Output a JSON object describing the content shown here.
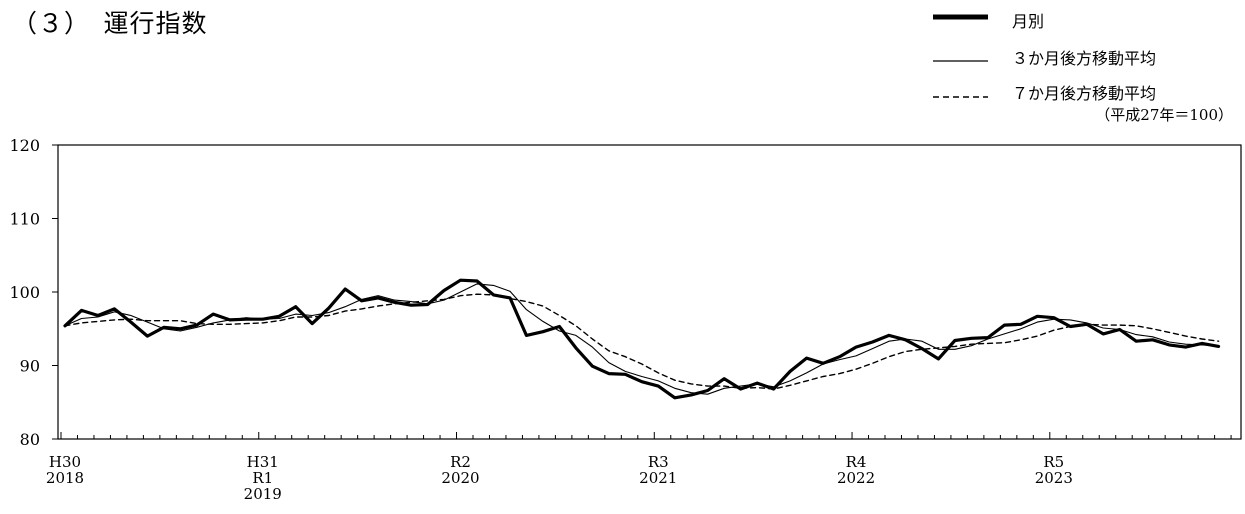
{
  "section_title": "（３）　運行指数",
  "legend": {
    "items": [
      {
        "label": "月別",
        "style": "thick"
      },
      {
        "label": "３か月後方移動平均",
        "style": "thin"
      },
      {
        "label": "７か月後方移動平均",
        "style": "dashed"
      }
    ],
    "note": "（平成27年＝100）"
  },
  "chart_data": {
    "type": "line",
    "ylim": [
      80,
      120
    ],
    "y_ticks": [
      80,
      90,
      100,
      110,
      120
    ],
    "x_start": "2018-01",
    "x_end": "2023-12",
    "grid": false,
    "legend_position": "top-right",
    "x_tick_labels": [
      {
        "at": "2018-01",
        "lines": [
          "H30",
          "2018"
        ]
      },
      {
        "at": "2019-01",
        "lines": [
          "H31",
          "R1",
          "2019"
        ]
      },
      {
        "at": "2020-01",
        "lines": [
          "R2",
          "2020"
        ]
      },
      {
        "at": "2021-01",
        "lines": [
          "R3",
          "2021"
        ]
      },
      {
        "at": "2022-01",
        "lines": [
          "R4",
          "2022"
        ]
      },
      {
        "at": "2023-01",
        "lines": [
          "R5",
          "2023"
        ]
      }
    ],
    "series": [
      {
        "name": "月別",
        "style": "thick",
        "values": [
          95.4,
          97.5,
          96.8,
          97.7,
          95.9,
          94.0,
          95.2,
          95.0,
          95.5,
          97.0,
          96.2,
          96.3,
          96.3,
          96.7,
          98.0,
          95.7,
          97.8,
          100.4,
          98.8,
          99.2,
          98.6,
          98.2,
          98.3,
          100.2,
          101.6,
          101.5,
          99.6,
          99.2,
          94.1,
          94.6,
          95.3,
          92.4,
          89.9,
          88.9,
          88.8,
          87.8,
          87.2,
          85.6,
          86.0,
          86.6,
          88.2,
          86.8,
          87.6,
          86.8,
          89.2,
          91.0,
          90.3,
          91.2,
          92.5,
          93.2,
          94.1,
          93.5,
          92.3,
          90.9,
          93.4,
          93.7,
          93.8,
          95.5,
          95.6,
          96.7,
          96.5,
          95.3,
          95.6,
          94.3,
          94.9,
          93.3,
          93.5,
          92.8,
          92.5,
          93.0,
          92.6
        ]
      },
      {
        "name": "３か月後方移動平均",
        "style": "thin",
        "values": [
          95.4,
          96.4,
          96.6,
          97.3,
          96.8,
          95.9,
          95.0,
          94.7,
          95.2,
          95.8,
          96.2,
          96.5,
          96.3,
          96.4,
          97.0,
          96.8,
          97.2,
          98.0,
          99.0,
          99.5,
          98.9,
          98.7,
          98.4,
          98.9,
          100.0,
          101.1,
          100.9,
          100.1,
          97.6,
          96.0,
          94.7,
          94.1,
          92.5,
          90.4,
          89.2,
          88.5,
          87.9,
          86.9,
          86.3,
          86.1,
          86.9,
          87.2,
          87.5,
          87.1,
          87.9,
          89.0,
          90.2,
          90.8,
          91.3,
          92.3,
          93.3,
          93.6,
          93.3,
          92.2,
          92.2,
          92.7,
          93.6,
          94.3,
          95.0,
          95.9,
          96.3,
          96.2,
          95.8,
          95.1,
          94.9,
          94.2,
          93.9,
          93.2,
          92.9,
          92.8,
          92.7
        ]
      },
      {
        "name": "７か月後方移動平均",
        "style": "dashed",
        "values": [
          95.4,
          95.8,
          96.0,
          96.2,
          96.3,
          96.1,
          96.1,
          96.1,
          95.7,
          95.6,
          95.6,
          95.7,
          95.8,
          96.1,
          96.6,
          96.6,
          96.8,
          97.4,
          97.7,
          98.1,
          98.4,
          98.6,
          98.8,
          99.0,
          99.5,
          99.7,
          99.6,
          99.1,
          98.7,
          98.1,
          96.8,
          95.4,
          93.6,
          92.0,
          91.2,
          90.2,
          89.0,
          88.0,
          87.5,
          87.2,
          87.2,
          86.9,
          87.0,
          86.8,
          87.3,
          87.9,
          88.5,
          88.9,
          89.5,
          90.3,
          91.2,
          91.9,
          92.2,
          92.4,
          92.6,
          92.9,
          93.0,
          93.1,
          93.5,
          94.0,
          94.8,
          95.3,
          95.6,
          95.5,
          95.5,
          95.4,
          95.0,
          94.5,
          94.0,
          93.6,
          93.3
        ]
      }
    ]
  }
}
